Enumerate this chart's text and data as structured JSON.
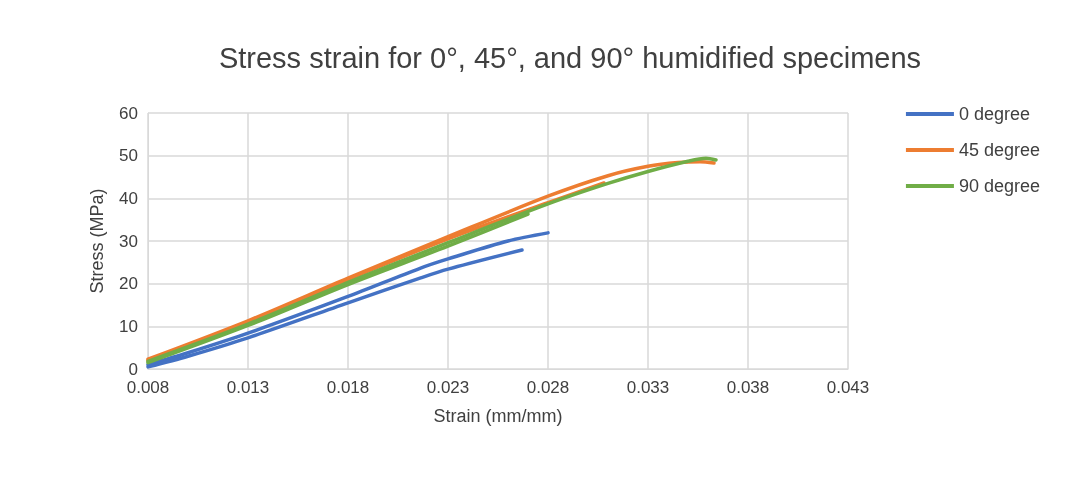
{
  "chart_data": {
    "type": "line",
    "title": "Stress strain for 0°, 45°, and 90° humidified specimens",
    "xlabel": "Strain (mm/mm)",
    "ylabel": "Stress (MPa)",
    "series": [
      {
        "name": "0 degree",
        "color": "#4472c4",
        "x": [
          0.008,
          0.01,
          0.013,
          0.018,
          0.0216,
          0.023,
          0.026,
          0.028
        ],
        "values": [
          1.0,
          3.8,
          8.4,
          17.0,
          23.6,
          25.8,
          30.0,
          31.9
        ]
      },
      {
        "color": "#4472c4",
        "x": [
          0.008,
          0.01,
          0.013,
          0.018,
          0.0216,
          0.023,
          0.0267
        ],
        "values": [
          0.5,
          3.0,
          7.3,
          15.5,
          21.3,
          23.4,
          27.9
        ]
      },
      {
        "name": "45 degree",
        "color": "#ed7d31",
        "x": [
          0.008,
          0.013,
          0.018,
          0.023,
          0.028,
          0.031,
          0.033,
          0.0345,
          0.0356,
          0.0363
        ],
        "values": [
          2.3,
          11.3,
          21.3,
          31.0,
          40.5,
          45.3,
          47.5,
          48.4,
          48.6,
          48.3
        ]
      },
      {
        "color": "#ed7d31",
        "x": [
          0.008,
          0.013,
          0.018,
          0.023,
          0.028,
          0.0308
        ],
        "values": [
          2.0,
          11.0,
          21.0,
          30.5,
          39.0,
          43.6
        ]
      },
      {
        "name": "90 degree",
        "color": "#70ad47",
        "x": [
          0.008,
          0.013,
          0.018,
          0.023,
          0.028,
          0.031,
          0.033,
          0.035,
          0.0359,
          0.0364
        ],
        "values": [
          1.8,
          10.5,
          20.3,
          29.6,
          38.7,
          43.5,
          46.3,
          48.7,
          49.4,
          49.0
        ]
      },
      {
        "color": "#70ad47",
        "x": [
          0.008,
          0.013,
          0.018,
          0.023,
          0.027
        ],
        "values": [
          1.5,
          10.2,
          19.8,
          28.8,
          36.3
        ]
      }
    ],
    "xlim": [
      0.008,
      0.043
    ],
    "xticks": [
      0.008,
      0.013,
      0.018,
      0.023,
      0.028,
      0.033,
      0.038,
      0.043
    ],
    "ylim": [
      0,
      60
    ],
    "yticks": [
      0,
      10,
      20,
      30,
      40,
      50,
      60
    ],
    "grid": true,
    "legend": "right",
    "marker": "none",
    "line_style": "solid"
  }
}
